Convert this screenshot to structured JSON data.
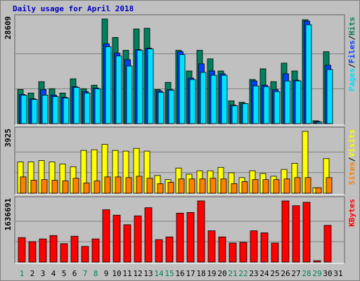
{
  "chart_data": [
    {
      "type": "bar",
      "title": "Daily usage for April 2018",
      "ylim": [
        0,
        28609
      ],
      "yticks": [
        28609
      ],
      "grid": true,
      "legend_separator": "/",
      "series": [
        {
          "name": "Hits",
          "color": "#00805c",
          "values": [
            9340,
            8370,
            11480,
            9540,
            8370,
            12260,
            9540,
            10510,
            28609,
            23550,
            20040,
            25880,
            26080,
            9340,
            11290,
            20040,
            14400,
            20040,
            17710,
            14400,
            6230,
            5840,
            12070,
            14990,
            11480,
            16540,
            14400,
            28400,
            780,
            19660,
            0
          ]
        },
        {
          "name": "Files",
          "color": "#0040ff",
          "values": [
            7980,
            6810,
            9340,
            7780,
            7200,
            10120,
            8760,
            9730,
            21800,
            19270,
            17510,
            20240,
            20630,
            8950,
            9340,
            19650,
            12450,
            16350,
            14400,
            13620,
            5060,
            5450,
            11680,
            10510,
            9340,
            13620,
            11870,
            28020,
            580,
            15960,
            0
          ]
        },
        {
          "name": "Pages",
          "color": "#00e0ff",
          "values": [
            7780,
            6620,
            7780,
            7390,
            7010,
            9920,
            8370,
            9540,
            21020,
            18490,
            15760,
            20040,
            20430,
            8560,
            9150,
            18880,
            12070,
            14010,
            13230,
            13230,
            4870,
            5450,
            10310,
            10120,
            8760,
            11680,
            11680,
            27050,
            390,
            14790,
            0
          ]
        }
      ]
    },
    {
      "type": "bar",
      "ylim": [
        0,
        3925
      ],
      "yticks": [
        3925
      ],
      "grid": true,
      "legend_separator": "/",
      "series": [
        {
          "name": "Visits",
          "color": "#ffff00",
          "values": [
            1983,
            1983,
            2069,
            1983,
            1853,
            1681,
            2715,
            2758,
            3103,
            2715,
            2672,
            2845,
            2672,
            1121,
            862,
            1595,
            1207,
            1422,
            1422,
            1638,
            1293,
            991,
            1422,
            1250,
            1078,
            1509,
            1896,
            3925,
            345,
            2198,
            0
          ]
        },
        {
          "name": "Sites",
          "color": "#ff8000",
          "values": [
            1034,
            819,
            862,
            819,
            776,
            948,
            647,
            776,
            1034,
            1034,
            991,
            1078,
            948,
            603,
            690,
            905,
            905,
            905,
            948,
            905,
            603,
            733,
            862,
            862,
            862,
            905,
            991,
            991,
            345,
            991,
            0
          ]
        }
      ]
    },
    {
      "type": "bar",
      "ylim": [
        0,
        1636691
      ],
      "yticks": [
        1636691
      ],
      "grid": true,
      "categories": [
        "1",
        "2",
        "3",
        "4",
        "5",
        "6",
        "7",
        "8",
        "9",
        "10",
        "11",
        "12",
        "13",
        "14",
        "15",
        "16",
        "17",
        "18",
        "19",
        "20",
        "21",
        "22",
        "23",
        "24",
        "25",
        "26",
        "27",
        "28",
        "29",
        "30",
        "31"
      ],
      "highlight": [
        0,
        6,
        7,
        13,
        14,
        20,
        21,
        27,
        28
      ],
      "highlight_color": "#00805c",
      "series": [
        {
          "name": "KBytes",
          "color": "#ff0000",
          "values": [
            654660,
            545550,
            618290,
            709215,
            490995,
            691030,
            418255,
            618290,
            1400245,
            1254765,
            1000175,
            1236580,
            1454800,
            600105,
            672845,
            1309320,
            1327505,
            1636691,
            836510,
            672845,
            509180,
            527365,
            836510,
            781955,
            509180,
            1636691,
            1509355,
            1600280,
            36370,
            981990,
            0
          ]
        }
      ]
    }
  ]
}
